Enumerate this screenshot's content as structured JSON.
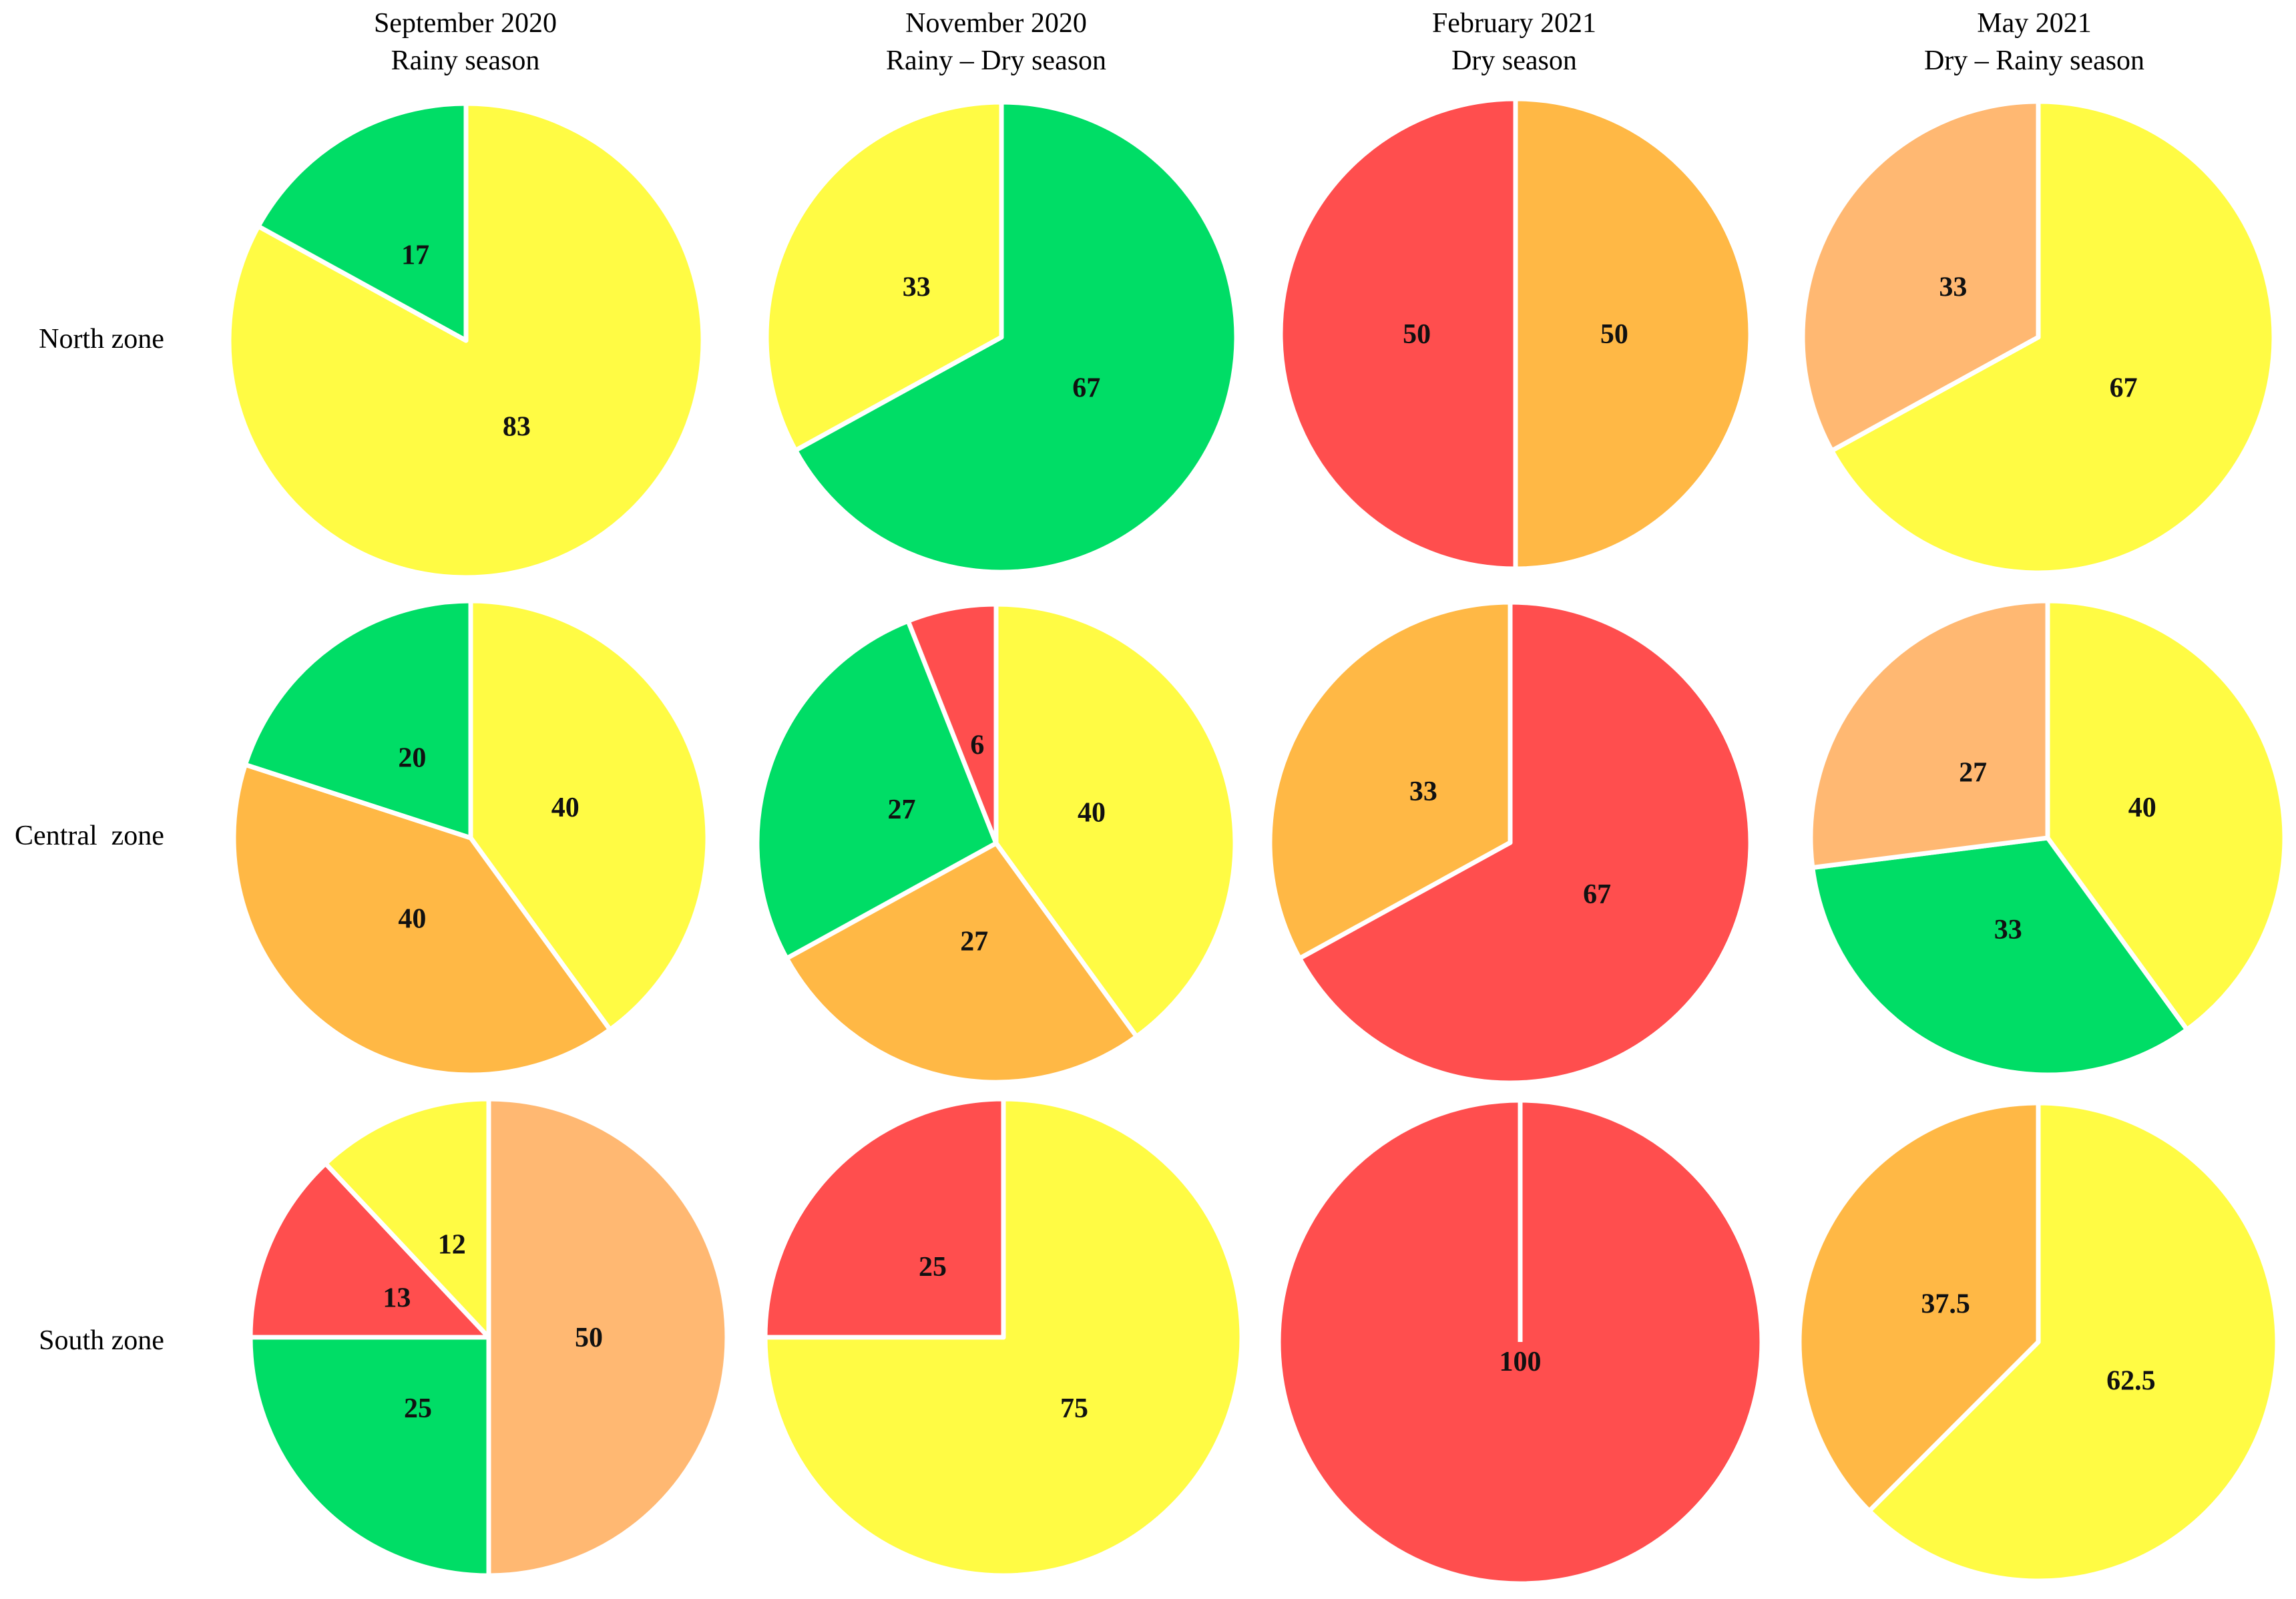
{
  "figure": {
    "columns": [
      {
        "line1": "September 2020",
        "line2": "Rainy season"
      },
      {
        "line1": "November 2020",
        "line2": "Rainy – Dry season"
      },
      {
        "line1": "February 2021",
        "line2": "Dry season"
      },
      {
        "line1": "May 2021",
        "line2": "Dry – Rainy season"
      }
    ],
    "rows": [
      "North zone",
      "Central  zone",
      "South zone"
    ]
  },
  "colors": {
    "green": "#00DD66",
    "yellow": "#FFFB44",
    "orange": "#FFB845",
    "light_orange": "#FFB872",
    "red": "#FF4E4E"
  },
  "chart_data": [
    {
      "type": "pie",
      "zone": "North zone",
      "period": "September 2020",
      "season": "Rainy season",
      "slices": [
        {
          "label": "83",
          "value": 83,
          "color": "yellow"
        },
        {
          "label": "17",
          "value": 17,
          "color": "green"
        }
      ]
    },
    {
      "type": "pie",
      "zone": "North zone",
      "period": "November 2020",
      "season": "Rainy – Dry season",
      "slices": [
        {
          "label": "67",
          "value": 67,
          "color": "green"
        },
        {
          "label": "33",
          "value": 33,
          "color": "yellow"
        }
      ]
    },
    {
      "type": "pie",
      "zone": "North zone",
      "period": "February 2021",
      "season": "Dry season",
      "slices": [
        {
          "label": "50",
          "value": 50,
          "color": "orange"
        },
        {
          "label": "50",
          "value": 50,
          "color": "red"
        }
      ]
    },
    {
      "type": "pie",
      "zone": "North zone",
      "period": "May 2021",
      "season": "Dry – Rainy season",
      "slices": [
        {
          "label": "67",
          "value": 67,
          "color": "yellow"
        },
        {
          "label": "33",
          "value": 33,
          "color": "light_orange"
        }
      ]
    },
    {
      "type": "pie",
      "zone": "Central zone",
      "period": "September 2020",
      "season": "Rainy season",
      "slices": [
        {
          "label": "40",
          "value": 40,
          "color": "yellow"
        },
        {
          "label": "40",
          "value": 40,
          "color": "orange"
        },
        {
          "label": "20",
          "value": 20,
          "color": "green"
        }
      ]
    },
    {
      "type": "pie",
      "zone": "Central zone",
      "period": "November 2020",
      "season": "Rainy – Dry season",
      "slices": [
        {
          "label": "40",
          "value": 40,
          "color": "yellow"
        },
        {
          "label": "27",
          "value": 27,
          "color": "orange"
        },
        {
          "label": "27",
          "value": 27,
          "color": "green"
        },
        {
          "label": "6",
          "value": 6,
          "color": "red"
        }
      ]
    },
    {
      "type": "pie",
      "zone": "Central zone",
      "period": "February 2021",
      "season": "Dry season",
      "slices": [
        {
          "label": "67",
          "value": 67,
          "color": "red"
        },
        {
          "label": "33",
          "value": 33,
          "color": "orange"
        }
      ]
    },
    {
      "type": "pie",
      "zone": "Central zone",
      "period": "May 2021",
      "season": "Dry – Rainy season",
      "slices": [
        {
          "label": "40",
          "value": 40,
          "color": "yellow"
        },
        {
          "label": "33",
          "value": 33,
          "color": "green"
        },
        {
          "label": "27",
          "value": 27,
          "color": "light_orange"
        }
      ]
    },
    {
      "type": "pie",
      "zone": "South zone",
      "period": "September 2020",
      "season": "Rainy season",
      "slices": [
        {
          "label": "50",
          "value": 50,
          "color": "light_orange"
        },
        {
          "label": "25",
          "value": 25,
          "color": "green"
        },
        {
          "label": "13",
          "value": 13,
          "color": "red"
        },
        {
          "label": "12",
          "value": 12,
          "color": "yellow"
        }
      ]
    },
    {
      "type": "pie",
      "zone": "South zone",
      "period": "November 2020",
      "season": "Rainy – Dry season",
      "slices": [
        {
          "label": "75",
          "value": 75,
          "color": "yellow"
        },
        {
          "label": "25",
          "value": 25,
          "color": "red"
        }
      ]
    },
    {
      "type": "pie",
      "zone": "South zone",
      "period": "February 2021",
      "season": "Dry season",
      "slices": [
        {
          "label": "100",
          "value": 100,
          "color": "red"
        }
      ]
    },
    {
      "type": "pie",
      "zone": "South zone",
      "period": "May 2021",
      "season": "Dry – Rainy season",
      "slices": [
        {
          "label": "62.5",
          "value": 62.5,
          "color": "yellow"
        },
        {
          "label": "37.5",
          "value": 37.5,
          "color": "orange"
        }
      ]
    }
  ]
}
